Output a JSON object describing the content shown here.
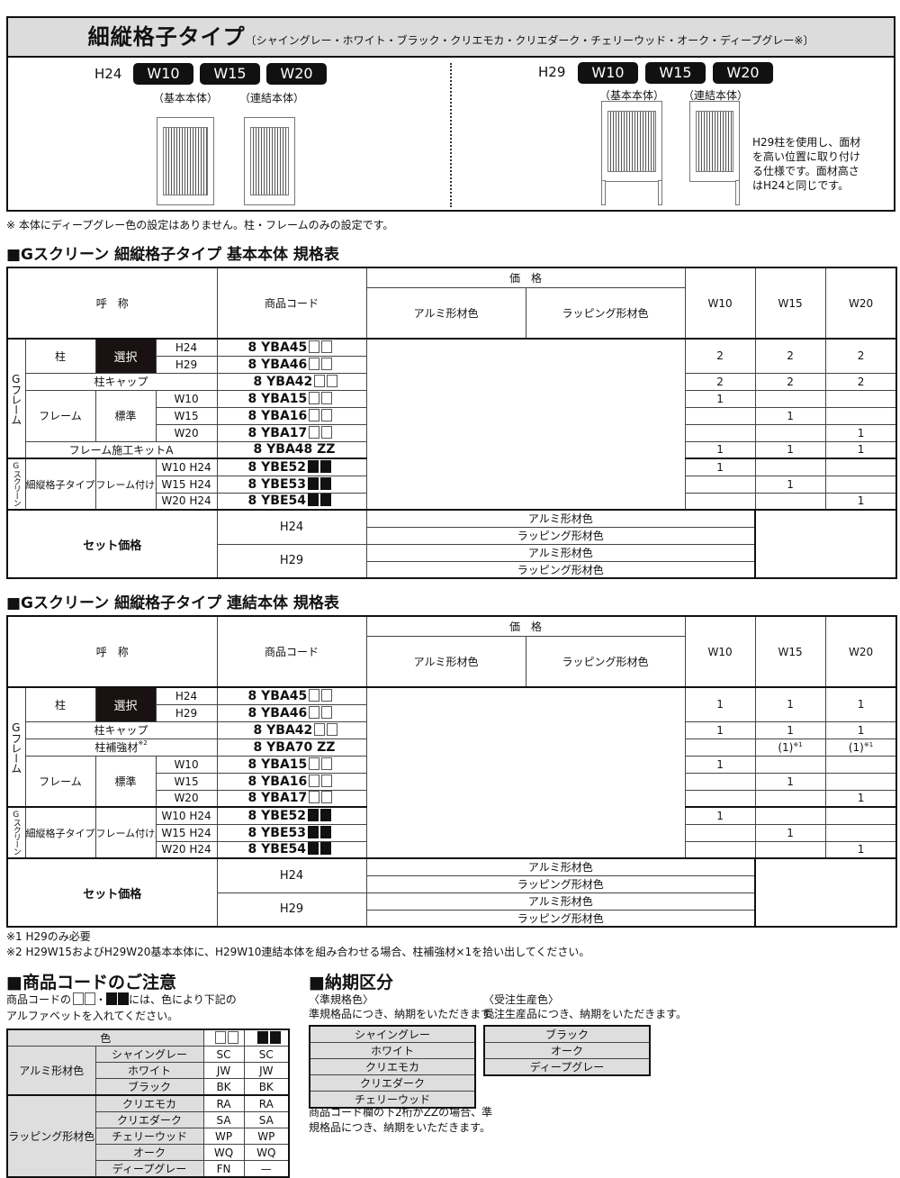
{
  "hero": {
    "title": "細縦格子タイプ",
    "subtitle": "〔シャイングレー・ホワイト・ブラック・クリエモカ・クリエダーク・チェリーウッド・オーク・ディープグレー※〕",
    "left": {
      "height": "H24",
      "widths": [
        "W10",
        "W15",
        "W20"
      ],
      "captions": [
        "（基本本体）",
        "（連結本体）"
      ]
    },
    "right": {
      "height": "H29",
      "widths": [
        "W10",
        "W15",
        "W20"
      ],
      "captions": [
        "（基本本体）",
        "（連結本体）"
      ]
    },
    "note_lines": [
      "H29柱を使用し、面材",
      "を高い位置に取り付け",
      "る仕様です。面材高さ",
      "はH24と同じです。"
    ]
  },
  "hero_footnote": "※ 本体にディープグレー色の設定はありません。柱・フレームのみの設定です。",
  "tables": [
    {
      "heading": "■Gスクリーン 細縦格子タイプ 基本本体 規格表",
      "header": {
        "name": "呼　称",
        "code": "商品コード",
        "price": "価　格",
        "alumi": "アルミ形材色",
        "wrapping": "ラッピング形材色",
        "widths": [
          "W10",
          "W15",
          "W20"
        ]
      },
      "group_frame": "Gフレーム",
      "group_screen": "Gスクリーン",
      "post": "柱",
      "select": "選択",
      "frame": "フレーム",
      "standard": "標準",
      "screen_type": "細縦格子タイプ",
      "screen_use": "フレーム付け用",
      "rows": [
        {
          "label": "H24",
          "code": "8 YBA45",
          "mark": "white",
          "qty": [
            "2",
            "2",
            "2"
          ]
        },
        {
          "label": "H29",
          "code": "8 YBA46",
          "mark": "white"
        },
        {
          "label": "柱キャップ",
          "code": "8 YBA42",
          "mark": "white",
          "qty": [
            "2",
            "2",
            "2"
          ]
        },
        {
          "label": "W10",
          "code": "8 YBA15",
          "mark": "white",
          "qty": [
            "1",
            "",
            ""
          ]
        },
        {
          "label": "W15",
          "code": "8 YBA16",
          "mark": "white",
          "qty": [
            "",
            "1",
            ""
          ]
        },
        {
          "label": "W20",
          "code": "8 YBA17",
          "mark": "white",
          "qty": [
            "",
            "",
            "1"
          ]
        },
        {
          "label": "フレーム施工キットA",
          "code": "8 YBA48 ZZ",
          "mark": "",
          "qty": [
            "1",
            "1",
            "1"
          ]
        },
        {
          "label": "W10 H24",
          "code": "8 YBE52",
          "mark": "black",
          "qty": [
            "1",
            "",
            ""
          ]
        },
        {
          "label": "W15 H24",
          "code": "8 YBE53",
          "mark": "black",
          "qty": [
            "",
            "1",
            ""
          ]
        },
        {
          "label": "W20 H24",
          "code": "8 YBE54",
          "mark": "black",
          "qty": [
            "",
            "",
            "1"
          ]
        }
      ],
      "set_price": {
        "label": "セット価格",
        "heights": [
          "H24",
          "H29"
        ],
        "options": [
          "アルミ形材色",
          "ラッピング形材色"
        ]
      }
    },
    {
      "heading": "■Gスクリーン 細縦格子タイプ 連結本体 規格表",
      "header": {
        "name": "呼　称",
        "code": "商品コード",
        "price": "価　格",
        "alumi": "アルミ形材色",
        "wrapping": "ラッピング形材色",
        "widths": [
          "W10",
          "W15",
          "W20"
        ]
      },
      "group_frame": "Gフレーム",
      "group_screen": "Gスクリーン",
      "post": "柱",
      "select": "選択",
      "frame": "フレーム",
      "standard": "標準",
      "screen_type": "細縦格子タイプ",
      "screen_use": "フレーム付け用",
      "rows": [
        {
          "label": "H24",
          "code": "8 YBA45",
          "mark": "white",
          "qty": [
            "1",
            "1",
            "1"
          ]
        },
        {
          "label": "H29",
          "code": "8 YBA46",
          "mark": "white"
        },
        {
          "label": "柱キャップ",
          "code": "8 YBA42",
          "mark": "white",
          "qty": [
            "1",
            "1",
            "1"
          ]
        },
        {
          "label": "柱補強材",
          "label_note": "※2",
          "code": "8 YBA70 ZZ",
          "mark": "",
          "qty": [
            "",
            "(1)",
            "(1)"
          ],
          "qty_note": "※1"
        },
        {
          "label": "W10",
          "code": "8 YBA15",
          "mark": "white",
          "qty": [
            "1",
            "",
            ""
          ]
        },
        {
          "label": "W15",
          "code": "8 YBA16",
          "mark": "white",
          "qty": [
            "",
            "1",
            ""
          ]
        },
        {
          "label": "W20",
          "code": "8 YBA17",
          "mark": "white",
          "qty": [
            "",
            "",
            "1"
          ]
        },
        {
          "label": "W10 H24",
          "code": "8 YBE52",
          "mark": "black",
          "qty": [
            "1",
            "",
            ""
          ]
        },
        {
          "label": "W15 H24",
          "code": "8 YBE53",
          "mark": "black",
          "qty": [
            "",
            "1",
            ""
          ]
        },
        {
          "label": "W20 H24",
          "code": "8 YBE54",
          "mark": "black",
          "qty": [
            "",
            "",
            "1"
          ]
        }
      ],
      "set_price": {
        "label": "セット価格",
        "heights": [
          "H24",
          "H29"
        ],
        "options": [
          "アルミ形材色",
          "ラッピング形材色"
        ]
      }
    }
  ],
  "footnotes": [
    "※1 H29のみ必要",
    "※2 H29W15およびH29W20基本本体に、H29W10連結本体を組み合わせる場合、柱補強材×1を拾い出してください。"
  ],
  "code_notice": {
    "heading": "■商品コードのご注意",
    "text_before": "商品コードの",
    "text_sep": "・",
    "text_after": "には、色により下記の",
    "text_line2": "アルファベットを入れてください。",
    "color_header": "色",
    "groups": [
      {
        "name": "アルミ形材色",
        "items": [
          {
            "color": "シャイングレー",
            "white": "SC",
            "black": "SC"
          },
          {
            "color": "ホワイト",
            "white": "JW",
            "black": "JW"
          },
          {
            "color": "ブラック",
            "white": "BK",
            "black": "BK"
          }
        ]
      },
      {
        "name": "ラッピング形材色",
        "items": [
          {
            "color": "クリエモカ",
            "white": "RA",
            "black": "RA"
          },
          {
            "color": "クリエダーク",
            "white": "SA",
            "black": "SA"
          },
          {
            "color": "チェリーウッド",
            "white": "WP",
            "black": "WP"
          },
          {
            "color": "オーク",
            "white": "WQ",
            "black": "WQ"
          },
          {
            "color": "ディープグレー",
            "white": "FN",
            "black": "—"
          }
        ]
      }
    ]
  },
  "delivery": {
    "heading": "■納期区分",
    "standard": {
      "title": "〈準規格色〉",
      "text": "準規格品につき、納期をいただきます。",
      "colors": [
        "シャイングレー",
        "ホワイト",
        "クリエモカ",
        "クリエダーク",
        "チェリーウッド"
      ]
    },
    "order": {
      "title": "〈受注生産色〉",
      "text": "受注生産品につき、納期をいただきます。",
      "colors": [
        "ブラック",
        "オーク",
        "ディープグレー"
      ]
    },
    "note_lines": [
      "商品コード欄の下2桁がZZの場合、準",
      "規格品につき、納期をいただきます。"
    ]
  }
}
